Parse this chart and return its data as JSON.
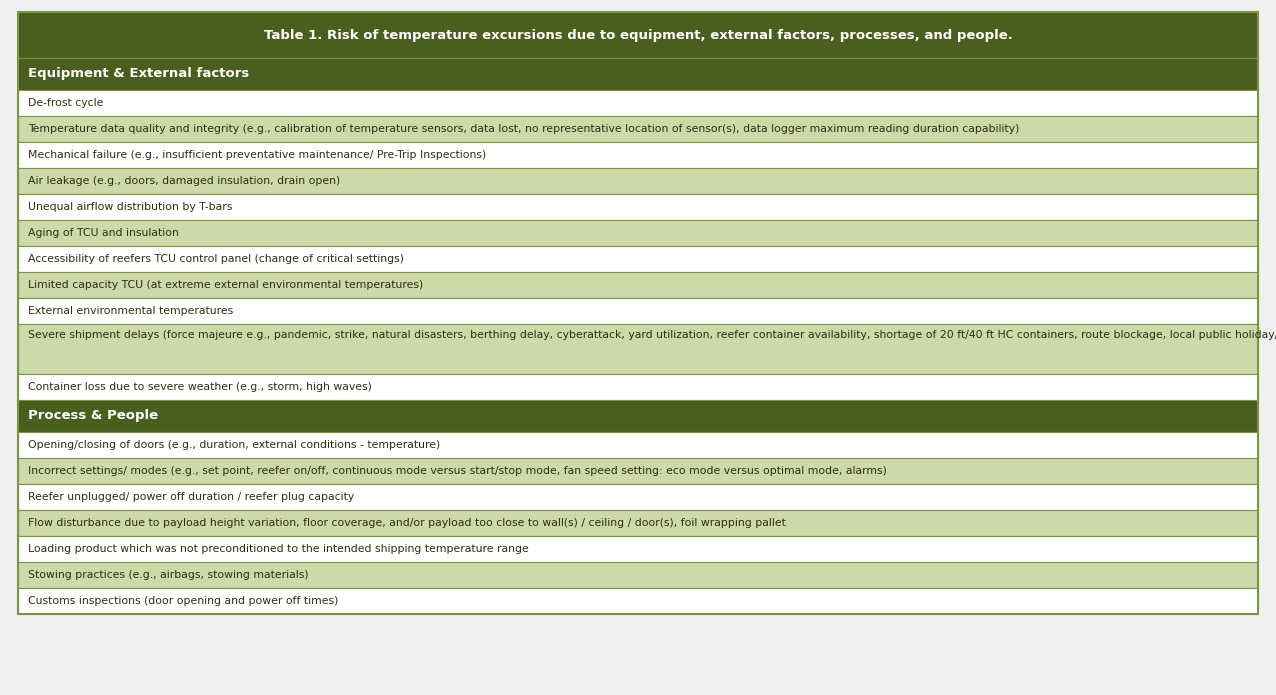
{
  "title": "Table 1. Risk of temperature excursions due to equipment, external factors, processes, and people.",
  "title_bg": "#4a5e1e",
  "title_text_color": "#ffffff",
  "section_header_bg": "#4a5e1e",
  "section_header_text_color": "#ffffff",
  "row_white_bg": "#ffffff",
  "row_tinted_bg": "#cdd9a8",
  "border_color": "#7a9640",
  "outer_border_color": "#7a9640",
  "text_color": "#2e2e10",
  "outer_bg": "#f0f0f0",
  "section1_header": "Equipment & External factors",
  "section2_header": "Process & People",
  "equipment_rows": [
    {
      "text": "De-frost cycle",
      "tinted": false
    },
    {
      "text": "Temperature data quality and integrity (e.g., calibration of temperature sensors, data lost, no representative location of sensor(s), data logger maximum reading duration capability)",
      "tinted": true
    },
    {
      "text": "Mechanical failure (e.g., insufficient preventative maintenance/ Pre-Trip Inspections)",
      "tinted": false
    },
    {
      "text": "Air leakage (e.g., doors, damaged insulation, drain open)",
      "tinted": true
    },
    {
      "text": "Unequal airflow distribution by T-bars",
      "tinted": false
    },
    {
      "text": "Aging of TCU and insulation",
      "tinted": true
    },
    {
      "text": "Accessibility of reefers TCU control panel (change of critical settings)",
      "tinted": false
    },
    {
      "text": "Limited capacity TCU (at extreme external environmental temperatures)",
      "tinted": true
    },
    {
      "text": "External environmental temperatures",
      "tinted": false
    },
    {
      "text": "Severe shipment delays (force majeure e.g., pandemic, strike, natural disasters, berthing delay, cyberattack, yard utilization, reefer container availability, shortage of 20 ft/40 ft HC containers, route blockage, local public holiday/festivals, carrier scheduling changes, vessel omissions and blank sailings)",
      "tinted": true,
      "tall": true
    },
    {
      "text": "Container loss due to severe weather (e.g., storm, high waves)",
      "tinted": false
    }
  ],
  "process_rows": [
    {
      "text": "Opening/closing of doors (e.g., duration, external conditions - temperature)",
      "tinted": false
    },
    {
      "text": "Incorrect settings/ modes (e.g., set point, reefer on/off, continuous mode versus start/stop mode, fan speed setting: eco mode versus optimal mode, alarms)",
      "tinted": true
    },
    {
      "text": "Reefer unplugged/ power off duration / reefer plug capacity",
      "tinted": false
    },
    {
      "text": "Flow disturbance due to payload height variation, floor coverage, and/or payload too close to wall(s) / ceiling / door(s), foil wrapping pallet",
      "tinted": true
    },
    {
      "text": "Loading product which was not preconditioned to the intended shipping temperature range",
      "tinted": false
    },
    {
      "text": "Stowing practices (e.g., airbags, stowing materials)",
      "tinted": true
    },
    {
      "text": "Customs inspections (door opening and power off times)",
      "tinted": false
    }
  ],
  "fig_width": 12.76,
  "fig_height": 6.95,
  "dpi": 100
}
